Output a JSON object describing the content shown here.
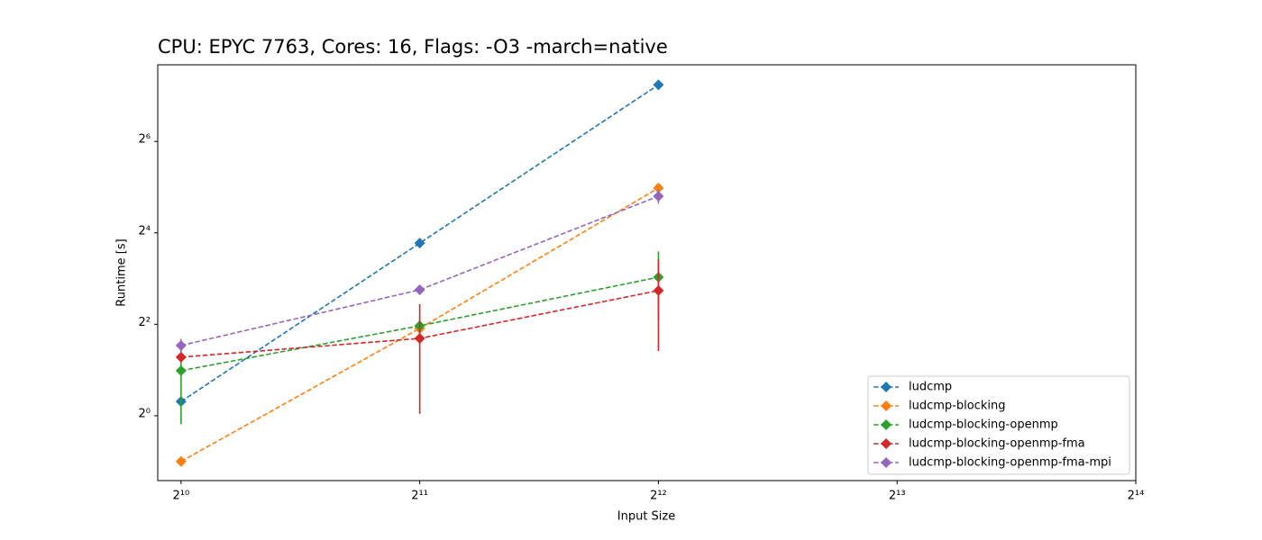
{
  "chart_data": {
    "type": "line",
    "title": "CPU: EPYC 7763, Cores: 16, Flags: -O3 -march=native",
    "x_label": "Input Size",
    "y_label": "Runtime [s]",
    "x": [
      1024,
      2048,
      4096
    ],
    "xscale": "log2",
    "yscale": "log2",
    "xlim": [
      957,
      16384
    ],
    "ylim": [
      0.374,
      204.6
    ],
    "xticks": [
      {
        "value": 1024,
        "label": "2¹⁰"
      },
      {
        "value": 2048,
        "label": "2¹¹"
      },
      {
        "value": 4096,
        "label": "2¹²"
      },
      {
        "value": 8192,
        "label": "2¹³"
      },
      {
        "value": 16384,
        "label": "2¹⁴"
      }
    ],
    "yticks": [
      {
        "value": 1,
        "label": "2⁰"
      },
      {
        "value": 4,
        "label": "2²"
      },
      {
        "value": 16,
        "label": "2⁴"
      },
      {
        "value": 64,
        "label": "2⁶"
      }
    ],
    "legend": "lower right",
    "series": [
      {
        "name": "ludcmp",
        "color": "#1f77b4",
        "values": [
          1.24,
          13.7,
          151
        ],
        "errors": [
          0.05,
          0.3,
          2
        ]
      },
      {
        "name": "ludcmp-blocking",
        "color": "#ff7f0e",
        "values": [
          0.5,
          3.76,
          31.6
        ],
        "errors": [
          0.01,
          0.1,
          0.5
        ]
      },
      {
        "name": "ludcmp-blocking-openmp",
        "color": "#2ca02c",
        "values": [
          1.98,
          3.91,
          8.17
        ],
        "errors": [
          1.1,
          0.5,
          3.9
        ]
      },
      {
        "name": "ludcmp-blocking-openmp-fma",
        "color": "#d62728",
        "values": [
          2.43,
          3.23,
          6.67
        ],
        "errors": [
          0.1,
          2.2,
          4
        ]
      },
      {
        "name": "ludcmp-blocking-openmp-fma-mpi",
        "color": "#9467bd",
        "values": [
          2.9,
          6.75,
          27.9
        ],
        "errors": [
          0.3,
          0.2,
          3
        ]
      }
    ]
  }
}
